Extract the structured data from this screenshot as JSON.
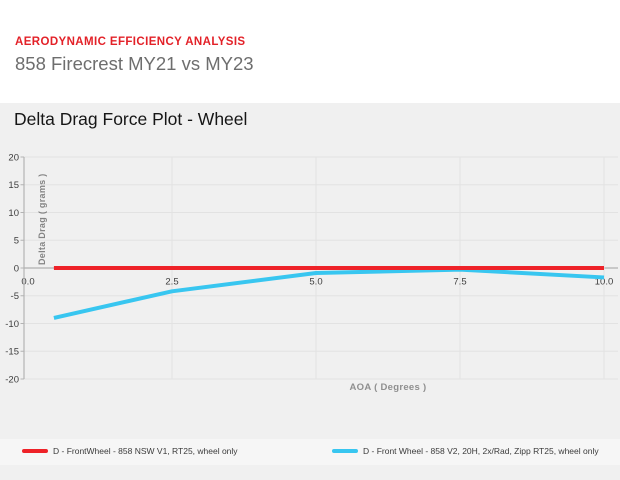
{
  "header": {
    "eyebrow": "AERODYNAMIC EFFICIENCY ANALYSIS",
    "title": "858 Firecrest MY21 vs MY23"
  },
  "chart_data": {
    "type": "line",
    "title": "Delta Drag Force Plot - Wheel",
    "xlabel": "AOA ( Degrees )",
    "ylabel": "Delta Drag ( grams )",
    "xlim": [
      0,
      10.25
    ],
    "ylim": [
      -20,
      20
    ],
    "x_tick_labels": [
      "0.0",
      "2.5",
      "5.0",
      "7.5",
      "10.0"
    ],
    "y_ticks": [
      20,
      15,
      10,
      5,
      0,
      -5,
      -10,
      -15,
      -20
    ],
    "grid": true,
    "legend_position": "bottom",
    "x": [
      0.45,
      2.5,
      5.0,
      7.5,
      10.0
    ],
    "series": [
      {
        "label": "D - FrontWheel - 858 NSW V1, RT25, wheel only",
        "color": "#ee2228",
        "values": [
          0,
          0,
          0,
          0,
          0
        ]
      },
      {
        "label": "D - Front Wheel - 858 V2, 20H, 2x/Rad, Zipp RT25, wheel only",
        "color": "#38c6f0",
        "values": [
          -9,
          -4.2,
          -0.9,
          -0.3,
          -1.7
        ]
      }
    ],
    "colors": {
      "panel_background": "#f0f0f0",
      "gridline": "#e2e2e2",
      "zero_line": "#9f9f9f",
      "axis_line": "#b3b3b3",
      "tick_label": "#3d3d3d"
    }
  }
}
